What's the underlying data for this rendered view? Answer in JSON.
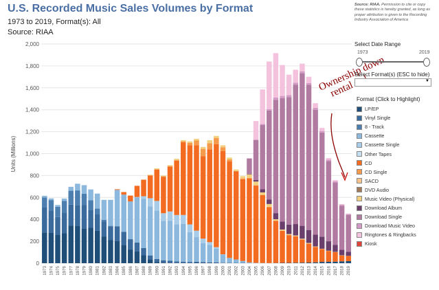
{
  "header": {
    "title": "U.S. Recorded Music Sales Volumes by Format",
    "subtitle": "1973 to 2019, Format(s): All",
    "source": "Source: RIAA"
  },
  "note": {
    "bold": "Source: RIAA.",
    "text": " Permission to cite or copy these statistics is hereby granted, as long as proper attribution is given to the Recording Industry Association of America"
  },
  "controls": {
    "date_range_label": "Select Date Range",
    "range_start": "1973",
    "range_end": "2019",
    "filter_label": "Select Format(s) (ESC to hide)",
    "filter_value": "",
    "legend_title": "Format (Click to Highlight)"
  },
  "annotation": {
    "line1": "Ownership down",
    "line2": "rental up!",
    "color": "#8b0000"
  },
  "chart_data": {
    "type": "bar",
    "stacked": true,
    "ylabel": "Units (Millions)",
    "ylim": [
      0,
      2000
    ],
    "yticks": [
      "0",
      "200",
      "400",
      "600",
      "800",
      "1,000",
      "1,200",
      "1,400",
      "1,600",
      "1,800",
      "2,000"
    ],
    "grid": true,
    "legend_position": "right",
    "categories": [
      "1973",
      "1974",
      "1975",
      "1976",
      "1977",
      "1978",
      "1979",
      "1980",
      "1981",
      "1982",
      "1983",
      "1984",
      "1985",
      "1986",
      "1987",
      "1988",
      "1989",
      "1990",
      "1991",
      "1992",
      "1993",
      "1994",
      "1995",
      "1996",
      "1997",
      "1998",
      "1999",
      "2000",
      "2001",
      "2002",
      "2003",
      "2004",
      "2005",
      "2006",
      "2007",
      "2008",
      "2009",
      "2010",
      "2011",
      "2012",
      "2013",
      "2014",
      "2015",
      "2016",
      "2017",
      "2018",
      "2019"
    ],
    "series": [
      {
        "name": "LP/EP",
        "color": "#1f4e79",
        "values": [
          280,
          276,
          257,
          273,
          344,
          341,
          318,
          323,
          295,
          244,
          210,
          205,
          167,
          125,
          107,
          72,
          35,
          12,
          5,
          2,
          1,
          2,
          2,
          3,
          3,
          3,
          3,
          2,
          2,
          2,
          2,
          1,
          1,
          1,
          1,
          2,
          3,
          3,
          4,
          5,
          6,
          8,
          12,
          13,
          14,
          17,
          19
        ]
      },
      {
        "name": "Vinyl Single",
        "color": "#3a6b9c",
        "values": [
          228,
          204,
          164,
          190,
          190,
          190,
          212,
          165,
          154,
          138,
          125,
          132,
          120,
          94,
          82,
          66,
          36,
          27,
          22,
          20,
          15,
          12,
          10,
          10,
          7,
          5,
          5,
          2,
          1,
          1,
          1,
          1,
          0,
          0,
          0,
          0,
          0,
          0,
          0,
          0,
          0,
          0,
          0,
          0,
          0,
          0,
          0
        ]
      },
      {
        "name": "8 - Track",
        "color": "#4c7fb0",
        "values": [
          92,
          96,
          94,
          106,
          127,
          133,
          104,
          86,
          49,
          14,
          6,
          0,
          0,
          0,
          0,
          0,
          0,
          0,
          0,
          0,
          0,
          0,
          0,
          0,
          0,
          0,
          0,
          0,
          0,
          0,
          0,
          0,
          0,
          0,
          0,
          0,
          0,
          0,
          0,
          0,
          0,
          0,
          0,
          0,
          0,
          0,
          0
        ]
      },
      {
        "name": "Cassette",
        "color": "#8db8dd",
        "values": [
          15,
          15,
          16,
          21,
          36,
          61,
          78,
          99,
          137,
          182,
          237,
          332,
          339,
          345,
          410,
          450,
          446,
          442,
          360,
          366,
          339,
          345,
          272,
          225,
          172,
          158,
          124,
          76,
          45,
          31,
          17,
          5,
          2,
          1,
          0,
          0,
          0,
          0,
          0,
          0,
          0,
          0,
          0,
          0,
          0,
          0,
          0
        ]
      },
      {
        "name": "Cassette Single",
        "color": "#a9cce8",
        "values": [
          0,
          0,
          0,
          0,
          0,
          0,
          0,
          0,
          0,
          0,
          0,
          0,
          0,
          0,
          5,
          23,
          76,
          87,
          69,
          84,
          85,
          81,
          70,
          59,
          42,
          26,
          14,
          1,
          0,
          0,
          0,
          0,
          0,
          0,
          0,
          0,
          0,
          0,
          0,
          0,
          0,
          0,
          0,
          0,
          0,
          0,
          0
        ]
      },
      {
        "name": "Other Tapes",
        "color": "#c5def0",
        "values": [
          0,
          0,
          0,
          0,
          0,
          0,
          0,
          0,
          0,
          0,
          0,
          0,
          0,
          0,
          0,
          0,
          0,
          0,
          0,
          0,
          0,
          0,
          0,
          0,
          0,
          0,
          0,
          0,
          0,
          0,
          0,
          0,
          0,
          0,
          0,
          0,
          0,
          0,
          0,
          0,
          0,
          0,
          0,
          0,
          0,
          0,
          0
        ]
      },
      {
        "name": "CD",
        "color": "#f26b21",
        "values": [
          0,
          0,
          0,
          0,
          0,
          0,
          0,
          0,
          0,
          0,
          0,
          6,
          23,
          53,
          102,
          150,
          208,
          287,
          333,
          408,
          495,
          663,
          723,
          779,
          753,
          847,
          939,
          943,
          882,
          803,
          746,
          767,
          705,
          620,
          511,
          385,
          293,
          253,
          241,
          211,
          172,
          141,
          117,
          99,
          87,
          53,
          47
        ]
      },
      {
        "name": "CD Single",
        "color": "#f59a4a",
        "values": [
          0,
          0,
          0,
          0,
          0,
          0,
          0,
          0,
          0,
          0,
          0,
          0,
          0,
          0,
          0,
          2,
          0,
          1,
          4,
          7,
          7,
          9,
          21,
          43,
          66,
          56,
          56,
          34,
          17,
          4,
          8,
          3,
          3,
          1,
          1,
          1,
          1,
          1,
          1,
          1,
          1,
          0,
          0,
          0,
          0,
          0,
          0
        ]
      },
      {
        "name": "SACD",
        "color": "#f7c48e",
        "values": [
          0,
          0,
          0,
          0,
          0,
          0,
          0,
          0,
          0,
          0,
          0,
          0,
          0,
          0,
          0,
          0,
          0,
          0,
          0,
          0,
          0,
          0,
          0,
          0,
          0,
          0,
          0,
          0,
          0,
          0,
          1,
          1,
          1,
          0,
          0,
          0,
          0,
          0,
          0,
          0,
          0,
          0,
          0,
          0,
          0,
          0,
          0
        ]
      },
      {
        "name": "DVD Audio",
        "color": "#a0785a",
        "values": [
          0,
          0,
          0,
          0,
          0,
          0,
          0,
          0,
          0,
          0,
          0,
          0,
          0,
          0,
          0,
          0,
          0,
          0,
          0,
          0,
          0,
          0,
          0,
          0,
          0,
          0,
          0,
          0,
          0,
          0,
          0,
          0,
          0,
          0,
          0,
          0,
          0,
          0,
          0,
          0,
          0,
          0,
          0,
          0,
          0,
          0,
          0
        ]
      },
      {
        "name": "Music Video (Physical)",
        "color": "#f2d080",
        "values": [
          0,
          0,
          0,
          0,
          0,
          0,
          0,
          0,
          0,
          0,
          0,
          0,
          0,
          0,
          0,
          0,
          6,
          9,
          6,
          7,
          11,
          11,
          13,
          16,
          18,
          27,
          20,
          18,
          17,
          14,
          19,
          33,
          33,
          23,
          27,
          13,
          10,
          9,
          7,
          7,
          6,
          4,
          3,
          2,
          2,
          2,
          1
        ]
      },
      {
        "name": "Download Album",
        "color": "#6b3f6b",
        "values": [
          0,
          0,
          0,
          0,
          0,
          0,
          0,
          0,
          0,
          0,
          0,
          0,
          0,
          0,
          0,
          0,
          0,
          0,
          0,
          0,
          0,
          0,
          0,
          0,
          0,
          0,
          0,
          0,
          0,
          0,
          0,
          5,
          14,
          28,
          42,
          56,
          74,
          86,
          104,
          117,
          118,
          107,
          109,
          86,
          65,
          50,
          38
        ]
      },
      {
        "name": "Download Single",
        "color": "#b07aa1",
        "values": [
          0,
          0,
          0,
          0,
          0,
          0,
          0,
          0,
          0,
          0,
          0,
          0,
          0,
          0,
          0,
          0,
          0,
          0,
          0,
          0,
          0,
          0,
          0,
          0,
          0,
          0,
          0,
          0,
          0,
          0,
          0,
          140,
          366,
          586,
          810,
          1034,
          1124,
          1163,
          1272,
          1392,
          1325,
          1140,
          951,
          732,
          568,
          401,
          334
        ]
      },
      {
        "name": "Download Music Video",
        "color": "#d49ac6",
        "values": [
          0,
          0,
          0,
          0,
          0,
          0,
          0,
          0,
          0,
          0,
          0,
          0,
          0,
          0,
          0,
          0,
          0,
          0,
          0,
          0,
          0,
          0,
          0,
          0,
          0,
          0,
          0,
          0,
          0,
          0,
          0,
          0,
          2,
          10,
          14,
          20,
          21,
          18,
          18,
          18,
          16,
          17,
          14,
          12,
          12,
          10,
          9
        ]
      },
      {
        "name": "Ringtones & Ringbacks",
        "color": "#f4c2dc",
        "values": [
          0,
          0,
          0,
          0,
          0,
          0,
          0,
          0,
          0,
          0,
          0,
          0,
          0,
          0,
          0,
          0,
          0,
          0,
          0,
          0,
          0,
          0,
          0,
          0,
          0,
          0,
          0,
          0,
          0,
          0,
          0,
          0,
          170,
          315,
          434,
          405,
          282,
          187,
          118,
          70,
          57,
          43,
          28,
          16,
          10,
          6,
          4
        ]
      },
      {
        "name": "Kiosk",
        "color": "#e0443b",
        "values": [
          0,
          0,
          0,
          0,
          0,
          0,
          0,
          0,
          0,
          0,
          0,
          0,
          0,
          0,
          0,
          0,
          0,
          0,
          0,
          0,
          0,
          0,
          0,
          0,
          0,
          0,
          0,
          0,
          0,
          0,
          0,
          0,
          0,
          0,
          0,
          0,
          0,
          0,
          0,
          0,
          0,
          0,
          0,
          0,
          0,
          0,
          0
        ]
      }
    ]
  }
}
